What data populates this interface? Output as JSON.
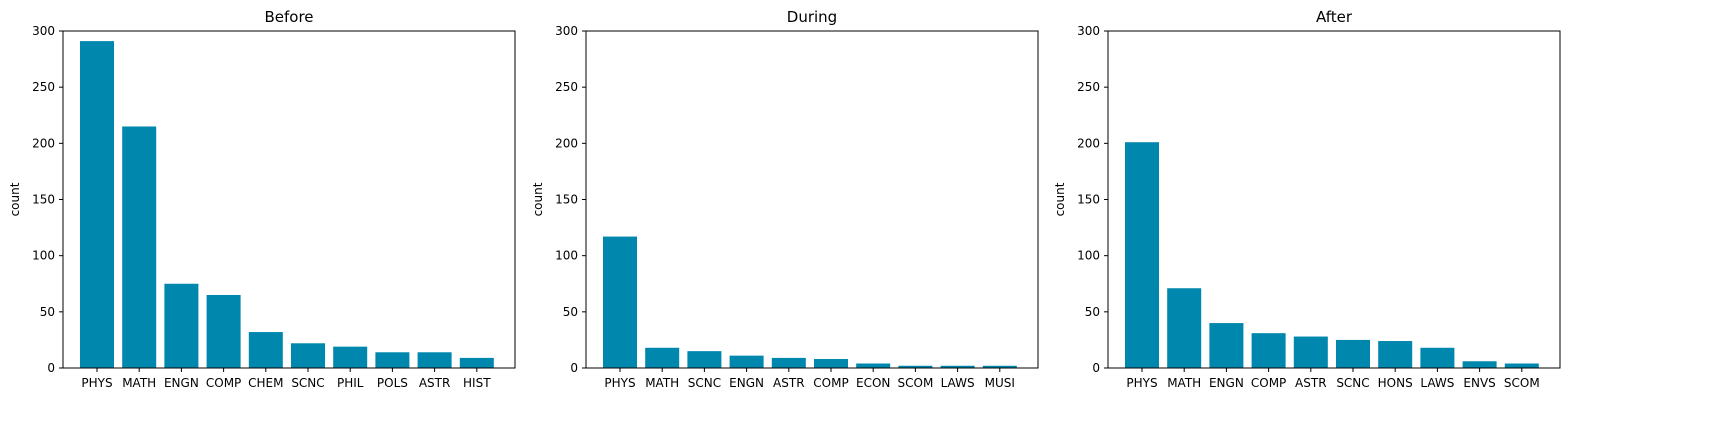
{
  "colors": {
    "bar": "#0087ad"
  },
  "chart_data": [
    {
      "type": "bar",
      "title": "Before",
      "ylabel": "count",
      "ylim": [
        0,
        300
      ],
      "yticks": [
        0,
        50,
        100,
        150,
        200,
        250,
        300
      ],
      "categories": [
        "PHYS",
        "MATH",
        "ENGN",
        "COMP",
        "CHEM",
        "SCNC",
        "PHIL",
        "POLS",
        "ASTR",
        "HIST"
      ],
      "values": [
        291,
        215,
        75,
        65,
        32,
        22,
        19,
        14,
        14,
        9
      ]
    },
    {
      "type": "bar",
      "title": "During",
      "ylabel": "count",
      "ylim": [
        0,
        300
      ],
      "yticks": [
        0,
        50,
        100,
        150,
        200,
        250,
        300
      ],
      "categories": [
        "PHYS",
        "MATH",
        "SCNC",
        "ENGN",
        "ASTR",
        "COMP",
        "ECON",
        "SCOM",
        "LAWS",
        "MUSI"
      ],
      "values": [
        117,
        18,
        15,
        11,
        9,
        8,
        4,
        2,
        2,
        2
      ]
    },
    {
      "type": "bar",
      "title": "After",
      "ylabel": "count",
      "ylim": [
        0,
        300
      ],
      "yticks": [
        0,
        50,
        100,
        150,
        200,
        250,
        300
      ],
      "categories": [
        "PHYS",
        "MATH",
        "ENGN",
        "COMP",
        "ASTR",
        "SCNC",
        "HONS",
        "LAWS",
        "ENVS",
        "SCOM"
      ],
      "values": [
        201,
        71,
        40,
        31,
        28,
        25,
        24,
        18,
        6,
        4
      ]
    }
  ]
}
